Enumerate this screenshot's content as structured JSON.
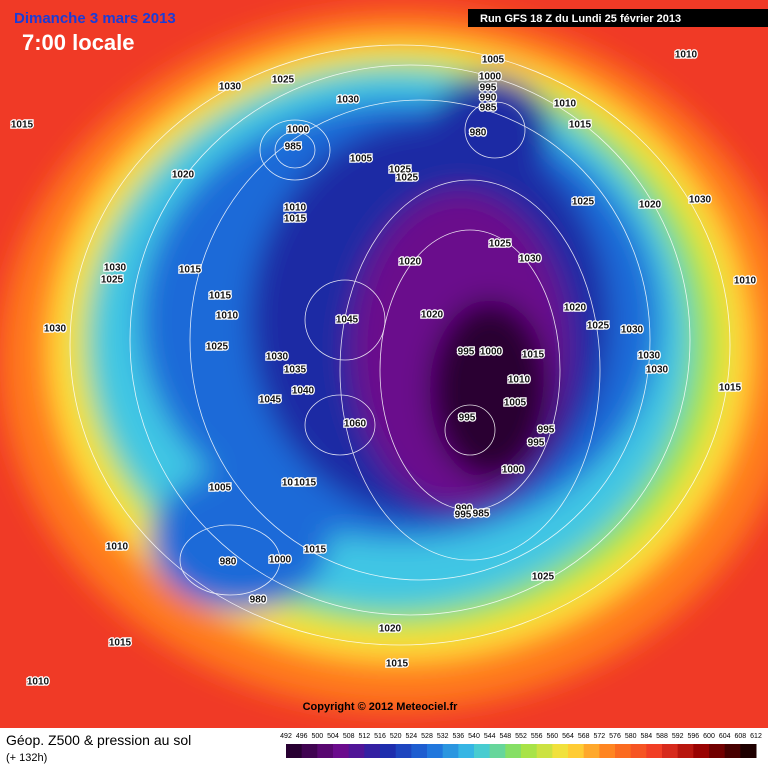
{
  "header": {
    "date": "Dimanche 3 mars 2013",
    "time": "7:00 locale",
    "run": "Run GFS 18 Z du Lundi 25 février 2013"
  },
  "copyright": "Copyright © 2012 Meteociel.fr",
  "footer": {
    "title": "Géop. Z500 & pression au sol",
    "lead": "(+ 132h)"
  },
  "scale": [
    492,
    496,
    500,
    504,
    508,
    512,
    516,
    520,
    524,
    528,
    532,
    536,
    540,
    544,
    548,
    552,
    556,
    560,
    564,
    568,
    572,
    576,
    580,
    584,
    588,
    592,
    596,
    600,
    604,
    608,
    612
  ],
  "pressure_labels": [
    1015,
    1030,
    1025,
    1030,
    1005,
    1000,
    995,
    990,
    985,
    980,
    1010,
    1015,
    1010,
    1020,
    1000,
    985,
    1025,
    1025,
    1005,
    1010,
    1015,
    1025,
    1020,
    1030,
    1020,
    1025,
    1030,
    1030,
    1025,
    1015,
    1015,
    1010,
    1045,
    1020,
    1020,
    1025,
    1030,
    1010,
    1030,
    1025,
    1030,
    1035,
    995,
    1000,
    1015,
    1030,
    1030,
    1010,
    1040,
    1045,
    1005,
    1015,
    1060,
    995,
    995,
    995,
    1000,
    1005,
    1010,
    1015,
    990,
    985,
    995,
    1010,
    980,
    1000,
    1015,
    980,
    1025,
    1020,
    1015,
    1015,
    1010
  ]
}
